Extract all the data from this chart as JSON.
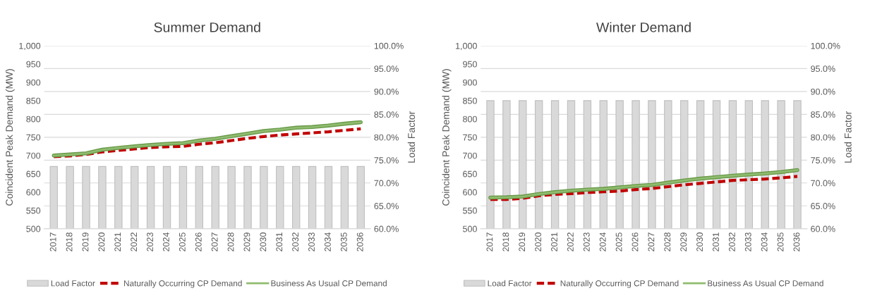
{
  "chart_data": [
    {
      "type": "line",
      "title": "Summer Demand",
      "ylabel": "Coincident Peak Demand (MW)",
      "y2label": "Load Factor",
      "categories": [
        "2017",
        "2018",
        "2019",
        "2020",
        "2021",
        "2022",
        "2023",
        "2024",
        "2025",
        "2026",
        "2027",
        "2028",
        "2029",
        "2030",
        "2031",
        "2032",
        "2033",
        "2034",
        "2035",
        "2036"
      ],
      "series": [
        {
          "name": "Load Factor",
          "type": "bar",
          "axis": "y2",
          "color": "#d9d9d9",
          "values": [
            73.6,
            73.6,
            73.6,
            73.6,
            73.6,
            73.6,
            73.6,
            73.6,
            73.6,
            73.6,
            73.6,
            73.6,
            73.6,
            73.6,
            73.6,
            73.6,
            73.6,
            73.6,
            73.6,
            73.6
          ]
        },
        {
          "name": "Naturally Occurring CP Demand",
          "line_style": "dashed",
          "color": "#c00000",
          "values": [
            697,
            699,
            703,
            710,
            714,
            718,
            722,
            724,
            725,
            731,
            735,
            741,
            747,
            752,
            756,
            759,
            762,
            765,
            769,
            773
          ]
        },
        {
          "name": "Business As Usual CP Demand",
          "line_style": "solid",
          "color": "#8fbc6f",
          "values": [
            700,
            703,
            706,
            716,
            721,
            725,
            729,
            732,
            734,
            741,
            746,
            753,
            760,
            767,
            771,
            776,
            778,
            782,
            787,
            791
          ]
        }
      ],
      "ylim": [
        500,
        1000
      ],
      "yticks": [
        500,
        550,
        600,
        650,
        700,
        750,
        800,
        850,
        900,
        950,
        {
          "value": 1000,
          "label": "1,000"
        }
      ],
      "y2lim": [
        60,
        100
      ],
      "y2ticks": [
        {
          "value": 60,
          "label": "60.0%"
        },
        {
          "value": 65,
          "label": "65.0%"
        },
        {
          "value": 70,
          "label": "70.0%"
        },
        {
          "value": 75,
          "label": "75.0%"
        },
        {
          "value": 80,
          "label": "80.0%"
        },
        {
          "value": 85,
          "label": "85.0%"
        },
        {
          "value": 90,
          "label": "90.0%"
        },
        {
          "value": 95,
          "label": "95.0%"
        },
        {
          "value": 100,
          "label": "100.0%"
        }
      ],
      "grid": "y",
      "legend": "bottom"
    },
    {
      "type": "line",
      "title": "Winter Demand",
      "ylabel": "Coincident Peak Demand (MW)",
      "y2label": "Load Factor",
      "categories": [
        "2017",
        "2018",
        "2019",
        "2020",
        "2021",
        "2022",
        "2023",
        "2024",
        "2025",
        "2026",
        "2027",
        "2028",
        "2029",
        "2030",
        "2031",
        "2032",
        "2033",
        "2034",
        "2035",
        "2036"
      ],
      "series": [
        {
          "name": "Load Factor",
          "type": "bar",
          "axis": "y2",
          "color": "#d9d9d9",
          "values": [
            88,
            88,
            88,
            88,
            88,
            88,
            88,
            88,
            88,
            88,
            88,
            88,
            88,
            88,
            88,
            88,
            88,
            88,
            88,
            88
          ]
        },
        {
          "name": "Naturally Occurring CP Demand",
          "line_style": "dashed",
          "color": "#c00000",
          "values": [
            580,
            580,
            583,
            590,
            594,
            596,
            599,
            601,
            603,
            607,
            610,
            615,
            620,
            624,
            628,
            632,
            634,
            636,
            639,
            643
          ]
        },
        {
          "name": "Business As Usual CP Demand",
          "line_style": "solid",
          "color": "#8fbc6f",
          "values": [
            585,
            586,
            588,
            595,
            600,
            604,
            607,
            609,
            613,
            617,
            620,
            626,
            632,
            637,
            641,
            645,
            648,
            651,
            655,
            660
          ]
        }
      ],
      "ylim": [
        500,
        1000
      ],
      "yticks": [
        500,
        550,
        600,
        650,
        700,
        750,
        800,
        850,
        900,
        950,
        {
          "value": 1000,
          "label": "1,000"
        }
      ],
      "y2lim": [
        60,
        100
      ],
      "y2ticks": [
        {
          "value": 60,
          "label": "60.0%"
        },
        {
          "value": 65,
          "label": "65.0%"
        },
        {
          "value": 70,
          "label": "70.0%"
        },
        {
          "value": 75,
          "label": "75.0%"
        },
        {
          "value": 80,
          "label": "80.0%"
        },
        {
          "value": 85,
          "label": "85.0%"
        },
        {
          "value": 90,
          "label": "90.0%"
        },
        {
          "value": 95,
          "label": "95.0%"
        },
        {
          "value": 100,
          "label": "100.0%"
        }
      ],
      "grid": "y",
      "legend": "bottom"
    }
  ]
}
